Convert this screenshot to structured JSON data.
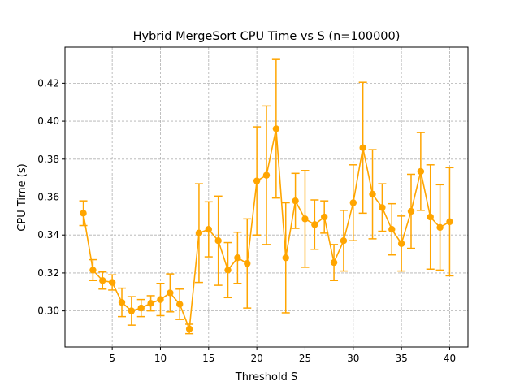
{
  "chart_data": {
    "type": "line",
    "title": "Hybrid MergeSort CPU Time vs S (n=100000)",
    "xlabel": "Threshold S",
    "ylabel": "CPU Time (s)",
    "xlim": [
      0.1,
      41.9
    ],
    "ylim": [
      0.281,
      0.439
    ],
    "xticks": [
      5,
      10,
      15,
      20,
      25,
      30,
      35,
      40
    ],
    "xtick_labels": [
      "5",
      "10",
      "15",
      "20",
      "25",
      "30",
      "35",
      "40"
    ],
    "yticks": [
      0.3,
      0.32,
      0.34,
      0.36,
      0.38,
      0.4,
      0.42
    ],
    "ytick_labels": [
      "0.30",
      "0.32",
      "0.34",
      "0.36",
      "0.38",
      "0.40",
      "0.42"
    ],
    "grid": true,
    "grid_style": "dashed",
    "color": "#FFA500",
    "marker": "circle",
    "error_bars": true,
    "series": [
      {
        "x": [
          2,
          3,
          4,
          5,
          6,
          7,
          8,
          9,
          10,
          11,
          12,
          13,
          14,
          15,
          16,
          17,
          18,
          19,
          20,
          21,
          22,
          23,
          24,
          25,
          26,
          27,
          28,
          29,
          30,
          31,
          32,
          33,
          34,
          35,
          36,
          37,
          38,
          39,
          40
        ],
        "y": [
          0.3515,
          0.3215,
          0.316,
          0.315,
          0.3045,
          0.3,
          0.3015,
          0.304,
          0.306,
          0.3095,
          0.3035,
          0.2905,
          0.341,
          0.343,
          0.337,
          0.3215,
          0.328,
          0.325,
          0.3685,
          0.3715,
          0.396,
          0.328,
          0.358,
          0.3485,
          0.3455,
          0.3495,
          0.3255,
          0.337,
          0.357,
          0.386,
          0.3615,
          0.3545,
          0.343,
          0.3355,
          0.3525,
          0.3735,
          0.3495,
          0.344,
          0.347
        ],
        "err": [
          0.0065,
          0.0055,
          0.0045,
          0.004,
          0.0075,
          0.0075,
          0.0045,
          0.004,
          0.0085,
          0.01,
          0.008,
          0.0025,
          0.026,
          0.0145,
          0.0235,
          0.0145,
          0.0135,
          0.0235,
          0.0285,
          0.0365,
          0.0365,
          0.029,
          0.0145,
          0.0255,
          0.013,
          0.0085,
          0.0095,
          0.016,
          0.02,
          0.0345,
          0.0235,
          0.0125,
          0.0135,
          0.0145,
          0.0195,
          0.0205,
          0.0275,
          0.0225,
          0.0285
        ]
      }
    ]
  }
}
